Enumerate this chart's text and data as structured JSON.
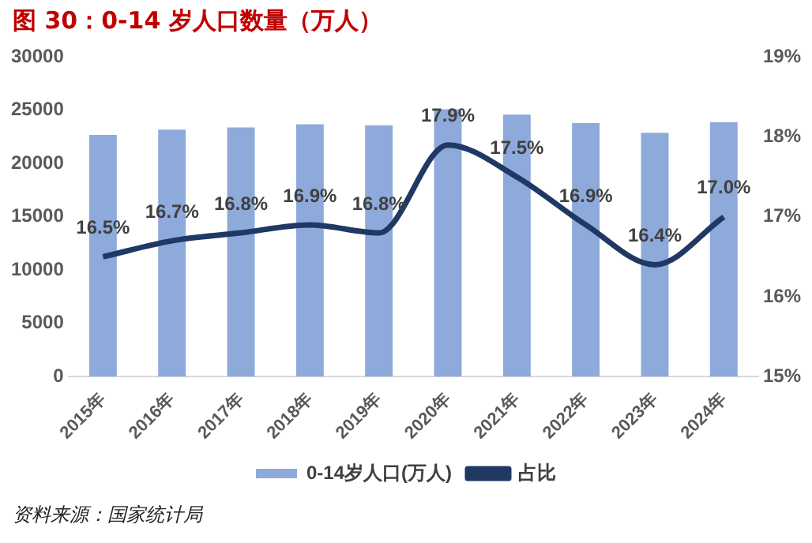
{
  "chart_data": {
    "type": "bar",
    "title": "图 30：0-14 岁人口数量（万人）",
    "categories": [
      "2015年",
      "2016年",
      "2017年",
      "2018年",
      "2019年",
      "2020年",
      "2021年",
      "2022年",
      "2023年",
      "2024年"
    ],
    "series": [
      {
        "name": "0-14岁人口(万人)",
        "color": "#8eaadb",
        "values": [
          22700,
          23200,
          23400,
          23700,
          23600,
          25100,
          24600,
          23800,
          22900,
          23900
        ]
      },
      {
        "name": "占比",
        "type": "line",
        "axis": "y2",
        "color": "#1f3864",
        "values": [
          16.5,
          16.7,
          16.8,
          16.9,
          16.8,
          17.9,
          17.5,
          16.9,
          16.4,
          17.0
        ],
        "value_labels": [
          "16.5%",
          "16.7%",
          "16.8%",
          "16.9%",
          "16.8%",
          "17.9%",
          "17.5%",
          "16.9%",
          "16.4%",
          "17.0%"
        ]
      }
    ],
    "ylim": [
      0,
      30000
    ],
    "yticks": [
      0,
      5000,
      10000,
      15000,
      20000,
      25000,
      30000
    ],
    "y2lim": [
      15,
      19
    ],
    "y2ticks": [
      {
        "value": 15,
        "label": "15%"
      },
      {
        "value": 16,
        "label": "16%"
      },
      {
        "value": 17,
        "label": "17%"
      },
      {
        "value": 18,
        "label": "18%"
      },
      {
        "value": 19,
        "label": "19%"
      }
    ],
    "grid": false,
    "legend": "bottom",
    "marker": "none",
    "line_style": "solid",
    "annotations": [
      "资料来源：国家统计局"
    ]
  }
}
